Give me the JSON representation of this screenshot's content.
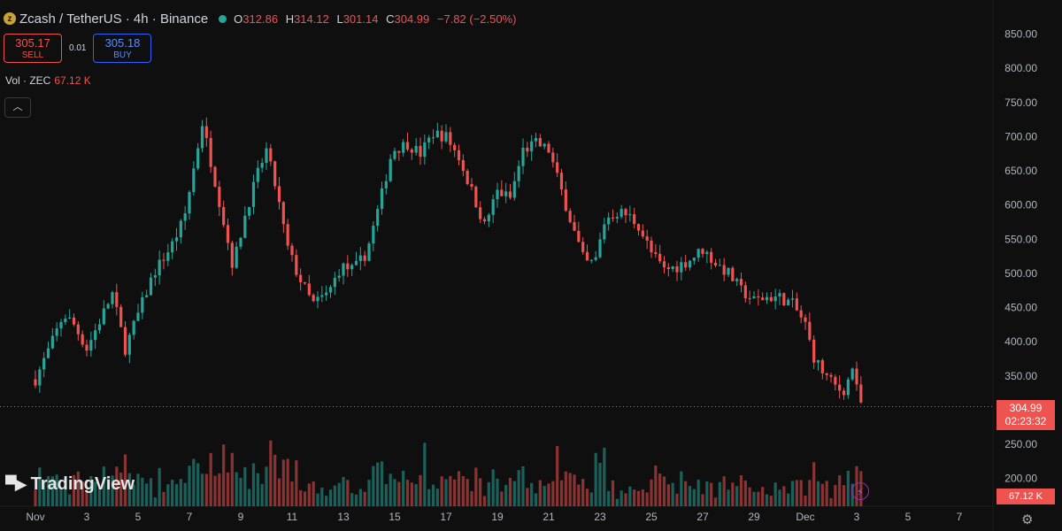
{
  "header": {
    "symbol": "Zcash / TetherUS · 4h · Binance",
    "coin_icon": "zcash-coin-icon",
    "ohlc": {
      "o_label": "O",
      "o": "312.86",
      "h_label": "H",
      "h": "314.12",
      "l_label": "L",
      "l": "301.14",
      "c_label": "C",
      "c": "304.99",
      "change": "−7.82 (−2.50%)"
    },
    "status_color": "#26a69a"
  },
  "trade": {
    "sell_price": "305.17",
    "sell_label": "SELL",
    "spread": "0.01",
    "buy_price": "305.18",
    "buy_label": "BUY"
  },
  "volume_legend": {
    "label": "Vol · ZEC",
    "value": "67.12 K"
  },
  "collapse_icon": "chevron-up-icon",
  "branding": {
    "name": "TradingView"
  },
  "price_tag": {
    "price": "304.99",
    "countdown": "02:23:32"
  },
  "volume_tag": "67.12 K",
  "colors": {
    "up": "#26a69a",
    "down": "#ef5350",
    "background": "#0f0f0f"
  },
  "chart_data": {
    "type": "candlestick",
    "y_ticks": [
      "850.00",
      "800.00",
      "750.00",
      "700.00",
      "650.00",
      "600.00",
      "550.00",
      "500.00",
      "450.00",
      "400.00",
      "350.00",
      "250.00",
      "200.00"
    ],
    "x_ticks": [
      "Nov",
      "3",
      "5",
      "7",
      "9",
      "11",
      "13",
      "15",
      "17",
      "19",
      "21",
      "23",
      "25",
      "27",
      "29",
      "Dec",
      "3",
      "5",
      "7"
    ],
    "ylim": [
      170,
      880
    ],
    "last_price": 304.99,
    "close_series": [
      {
        "day": 1.0,
        "price": 345
      },
      {
        "day": 1.6,
        "price": 395
      },
      {
        "day": 2.1,
        "price": 440
      },
      {
        "day": 2.5,
        "price": 425
      },
      {
        "day": 3.0,
        "price": 390
      },
      {
        "day": 3.5,
        "price": 430
      },
      {
        "day": 4.0,
        "price": 470
      },
      {
        "day": 4.5,
        "price": 390
      },
      {
        "day": 5.0,
        "price": 440
      },
      {
        "day": 5.6,
        "price": 500
      },
      {
        "day": 6.3,
        "price": 540
      },
      {
        "day": 6.8,
        "price": 580
      },
      {
        "day": 7.2,
        "price": 660
      },
      {
        "day": 7.5,
        "price": 720
      },
      {
        "day": 7.8,
        "price": 670
      },
      {
        "day": 8.2,
        "price": 600
      },
      {
        "day": 8.7,
        "price": 510
      },
      {
        "day": 9.2,
        "price": 590
      },
      {
        "day": 9.7,
        "price": 650
      },
      {
        "day": 10.0,
        "price": 680
      },
      {
        "day": 10.4,
        "price": 620
      },
      {
        "day": 10.8,
        "price": 540
      },
      {
        "day": 11.2,
        "price": 500
      },
      {
        "day": 11.8,
        "price": 455
      },
      {
        "day": 12.4,
        "price": 470
      },
      {
        "day": 12.9,
        "price": 510
      },
      {
        "day": 13.4,
        "price": 505
      },
      {
        "day": 13.9,
        "price": 530
      },
      {
        "day": 14.4,
        "price": 600
      },
      {
        "day": 14.9,
        "price": 680
      },
      {
        "day": 15.5,
        "price": 690
      },
      {
        "day": 16.0,
        "price": 675
      },
      {
        "day": 16.5,
        "price": 705
      },
      {
        "day": 17.0,
        "price": 700
      },
      {
        "day": 17.5,
        "price": 670
      },
      {
        "day": 18.0,
        "price": 620
      },
      {
        "day": 18.5,
        "price": 570
      },
      {
        "day": 19.0,
        "price": 620
      },
      {
        "day": 19.5,
        "price": 610
      },
      {
        "day": 20.0,
        "price": 680
      },
      {
        "day": 20.5,
        "price": 690
      },
      {
        "day": 21.0,
        "price": 680
      },
      {
        "day": 21.5,
        "price": 620
      },
      {
        "day": 22.0,
        "price": 560
      },
      {
        "day": 22.4,
        "price": 515
      },
      {
        "day": 22.8,
        "price": 515
      },
      {
        "day": 23.2,
        "price": 580
      },
      {
        "day": 23.7,
        "price": 590
      },
      {
        "day": 24.1,
        "price": 585
      },
      {
        "day": 24.5,
        "price": 570
      },
      {
        "day": 25.0,
        "price": 530
      },
      {
        "day": 25.5,
        "price": 505
      },
      {
        "day": 26.0,
        "price": 510
      },
      {
        "day": 26.5,
        "price": 520
      },
      {
        "day": 27.0,
        "price": 535
      },
      {
        "day": 27.5,
        "price": 515
      },
      {
        "day": 28.0,
        "price": 500
      },
      {
        "day": 28.5,
        "price": 475
      },
      {
        "day": 29.0,
        "price": 460
      },
      {
        "day": 29.5,
        "price": 465
      },
      {
        "day": 30.0,
        "price": 465
      },
      {
        "day": 30.5,
        "price": 455
      },
      {
        "day": 31.0,
        "price": 425
      },
      {
        "day": 31.3,
        "price": 380
      },
      {
        "day": 31.6,
        "price": 360
      },
      {
        "day": 31.9,
        "price": 345
      },
      {
        "day": 32.3,
        "price": 330
      },
      {
        "day": 32.6,
        "price": 330
      },
      {
        "day": 32.8,
        "price": 370
      },
      {
        "day": 33.0,
        "price": 330
      },
      {
        "day": 33.2,
        "price": 305
      }
    ]
  }
}
